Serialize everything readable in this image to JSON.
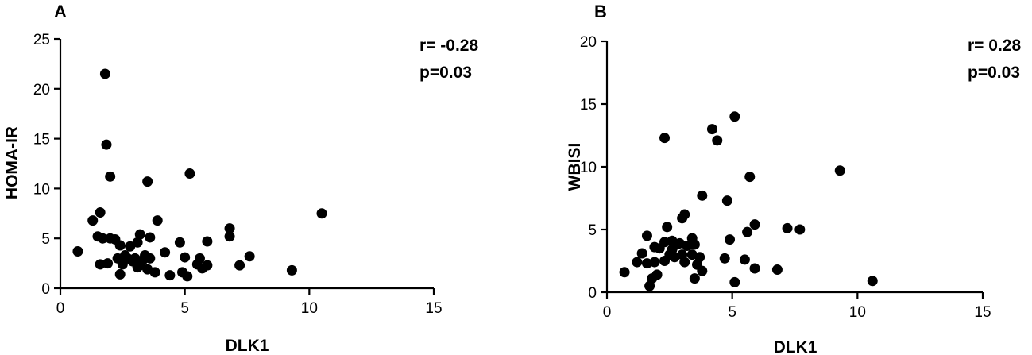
{
  "chart_data": [
    {
      "type": "scatter",
      "panel": "A",
      "xlabel": "DLK1",
      "ylabel": "HOMA-IR",
      "xlim": [
        0,
        15
      ],
      "ylim": [
        0,
        25
      ],
      "xticks": [
        "0",
        "5",
        "10",
        "15"
      ],
      "yticks": [
        "0",
        "5",
        "10",
        "15",
        "20",
        "25"
      ],
      "annotations": [
        "r= -0.28",
        "p=0.03"
      ],
      "grid": false,
      "color": "#000000",
      "points": [
        {
          "x": 0.7,
          "y": 3.7
        },
        {
          "x": 1.3,
          "y": 6.8
        },
        {
          "x": 1.5,
          "y": 5.2
        },
        {
          "x": 1.6,
          "y": 7.6
        },
        {
          "x": 1.6,
          "y": 2.4
        },
        {
          "x": 1.7,
          "y": 5.0
        },
        {
          "x": 1.8,
          "y": 21.5
        },
        {
          "x": 1.85,
          "y": 14.4
        },
        {
          "x": 1.9,
          "y": 2.5
        },
        {
          "x": 2.0,
          "y": 11.2
        },
        {
          "x": 2.0,
          "y": 5.0
        },
        {
          "x": 2.2,
          "y": 4.9
        },
        {
          "x": 2.3,
          "y": 3.0
        },
        {
          "x": 2.4,
          "y": 4.3
        },
        {
          "x": 2.4,
          "y": 1.4
        },
        {
          "x": 2.5,
          "y": 2.4
        },
        {
          "x": 2.6,
          "y": 3.3
        },
        {
          "x": 2.7,
          "y": 3.0
        },
        {
          "x": 2.8,
          "y": 4.2
        },
        {
          "x": 2.9,
          "y": 2.7
        },
        {
          "x": 3.0,
          "y": 3.0
        },
        {
          "x": 3.1,
          "y": 2.1
        },
        {
          "x": 3.1,
          "y": 4.6
        },
        {
          "x": 3.2,
          "y": 5.4
        },
        {
          "x": 3.2,
          "y": 2.3
        },
        {
          "x": 3.3,
          "y": 2.8
        },
        {
          "x": 3.4,
          "y": 3.3
        },
        {
          "x": 3.5,
          "y": 10.7
        },
        {
          "x": 3.5,
          "y": 1.9
        },
        {
          "x": 3.6,
          "y": 5.1
        },
        {
          "x": 3.6,
          "y": 3.0
        },
        {
          "x": 3.8,
          "y": 1.6
        },
        {
          "x": 3.9,
          "y": 6.8
        },
        {
          "x": 4.2,
          "y": 3.6
        },
        {
          "x": 4.4,
          "y": 1.3
        },
        {
          "x": 4.8,
          "y": 4.6
        },
        {
          "x": 4.9,
          "y": 1.6
        },
        {
          "x": 5.0,
          "y": 3.1
        },
        {
          "x": 5.1,
          "y": 1.2
        },
        {
          "x": 5.2,
          "y": 11.5
        },
        {
          "x": 5.5,
          "y": 2.4
        },
        {
          "x": 5.6,
          "y": 3.0
        },
        {
          "x": 5.7,
          "y": 2.0
        },
        {
          "x": 5.9,
          "y": 4.7
        },
        {
          "x": 5.9,
          "y": 2.3
        },
        {
          "x": 6.8,
          "y": 6.0
        },
        {
          "x": 6.8,
          "y": 5.2
        },
        {
          "x": 7.2,
          "y": 2.3
        },
        {
          "x": 7.6,
          "y": 3.2
        },
        {
          "x": 9.3,
          "y": 1.8
        },
        {
          "x": 10.5,
          "y": 7.5
        }
      ]
    },
    {
      "type": "scatter",
      "panel": "B",
      "xlabel": "DLK1",
      "ylabel": "WBISI",
      "xlim": [
        0,
        15
      ],
      "ylim": [
        0,
        20
      ],
      "xticks": [
        "0",
        "5",
        "10",
        "15"
      ],
      "yticks": [
        "0",
        "5",
        "10",
        "15",
        "20"
      ],
      "annotations": [
        "r= 0.28",
        "p=0.03"
      ],
      "grid": false,
      "color": "#000000",
      "points": [
        {
          "x": 0.7,
          "y": 1.6
        },
        {
          "x": 1.2,
          "y": 2.4
        },
        {
          "x": 1.4,
          "y": 3.1
        },
        {
          "x": 1.6,
          "y": 4.5
        },
        {
          "x": 1.6,
          "y": 2.3
        },
        {
          "x": 1.7,
          "y": 0.5
        },
        {
          "x": 1.8,
          "y": 1.1
        },
        {
          "x": 1.9,
          "y": 2.4
        },
        {
          "x": 1.9,
          "y": 3.6
        },
        {
          "x": 2.0,
          "y": 1.4
        },
        {
          "x": 2.1,
          "y": 3.5
        },
        {
          "x": 2.3,
          "y": 4.0
        },
        {
          "x": 2.3,
          "y": 2.5
        },
        {
          "x": 2.3,
          "y": 12.3
        },
        {
          "x": 2.4,
          "y": 5.2
        },
        {
          "x": 2.5,
          "y": 3.0
        },
        {
          "x": 2.6,
          "y": 4.1
        },
        {
          "x": 2.6,
          "y": 3.4
        },
        {
          "x": 2.7,
          "y": 2.8
        },
        {
          "x": 2.8,
          "y": 3.8
        },
        {
          "x": 2.9,
          "y": 3.9
        },
        {
          "x": 3.0,
          "y": 5.9
        },
        {
          "x": 3.0,
          "y": 3.0
        },
        {
          "x": 3.1,
          "y": 6.2
        },
        {
          "x": 3.1,
          "y": 2.4
        },
        {
          "x": 3.2,
          "y": 3.7
        },
        {
          "x": 3.4,
          "y": 4.3
        },
        {
          "x": 3.4,
          "y": 3.0
        },
        {
          "x": 3.5,
          "y": 1.1
        },
        {
          "x": 3.5,
          "y": 3.8
        },
        {
          "x": 3.6,
          "y": 2.2
        },
        {
          "x": 3.7,
          "y": 2.8
        },
        {
          "x": 3.8,
          "y": 1.7
        },
        {
          "x": 3.8,
          "y": 7.7
        },
        {
          "x": 4.2,
          "y": 13.0
        },
        {
          "x": 4.4,
          "y": 12.1
        },
        {
          "x": 4.7,
          "y": 2.7
        },
        {
          "x": 4.8,
          "y": 7.3
        },
        {
          "x": 4.9,
          "y": 4.2
        },
        {
          "x": 5.1,
          "y": 14.0
        },
        {
          "x": 5.1,
          "y": 0.8
        },
        {
          "x": 5.5,
          "y": 2.6
        },
        {
          "x": 5.6,
          "y": 4.8
        },
        {
          "x": 5.7,
          "y": 9.2
        },
        {
          "x": 5.9,
          "y": 5.4
        },
        {
          "x": 5.9,
          "y": 1.9
        },
        {
          "x": 6.8,
          "y": 1.8
        },
        {
          "x": 7.2,
          "y": 5.1
        },
        {
          "x": 7.7,
          "y": 5.0
        },
        {
          "x": 9.3,
          "y": 9.7
        },
        {
          "x": 10.6,
          "y": 0.9
        }
      ]
    }
  ]
}
